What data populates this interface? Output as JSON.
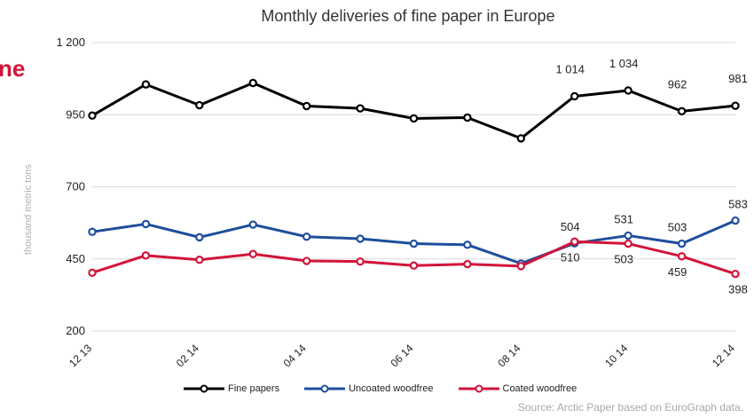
{
  "page": {
    "cut_text": "ne"
  },
  "source": "Source: Arctic Paper based on EuroGraph data.",
  "chart_data": {
    "type": "line",
    "title": "Monthly deliveries of fine paper in Europe",
    "ylabel": "thousand metric tons",
    "xlabel": "",
    "ylim": [
      200,
      1200
    ],
    "yticks": [
      200,
      450,
      700,
      950,
      1200
    ],
    "ytick_labels": [
      "200",
      "450",
      "700",
      "950",
      "1 200"
    ],
    "x": [
      "12 13",
      "01 14",
      "02 14",
      "03 14",
      "04 14",
      "05 14",
      "06 14",
      "07 14",
      "08 14",
      "09 14",
      "10 14",
      "11 14",
      "12 14"
    ],
    "xtick_labels": [
      "12 13",
      "",
      "02 14",
      "",
      "04 14",
      "",
      "06 14",
      "",
      "08 14",
      "",
      "10 14",
      "",
      "12 14"
    ],
    "grid": "horizontal",
    "legend": "bottom",
    "series": [
      {
        "name": "Fine papers",
        "color": "#000000",
        "values": [
          947,
          1055,
          983,
          1060,
          980,
          972,
          937,
          940,
          868,
          1014,
          1034,
          962,
          981
        ],
        "labels": [
          "",
          "",
          "",
          "",
          "",
          "",
          "",
          "",
          "",
          "1 014",
          "1 034",
          "962",
          "981"
        ],
        "label_pos": "above"
      },
      {
        "name": "Uncoated woodfree",
        "color": "#1f4e9c",
        "values": [
          544,
          571,
          525,
          569,
          527,
          520,
          503,
          499,
          434,
          504,
          531,
          503,
          583
        ],
        "labels": [
          "",
          "",
          "",
          "",
          "",
          "",
          "",
          "",
          "",
          "504",
          "531",
          "503",
          "583"
        ],
        "label_pos": "above"
      },
      {
        "name": "Coated woodfree",
        "color": "#d2143a",
        "values": [
          402,
          462,
          447,
          467,
          443,
          441,
          427,
          432,
          425,
          510,
          503,
          459,
          398
        ],
        "labels": [
          "",
          "",
          "",
          "",
          "",
          "",
          "",
          "",
          "",
          "510",
          "503",
          "459",
          "398"
        ],
        "label_pos": "below"
      }
    ]
  }
}
